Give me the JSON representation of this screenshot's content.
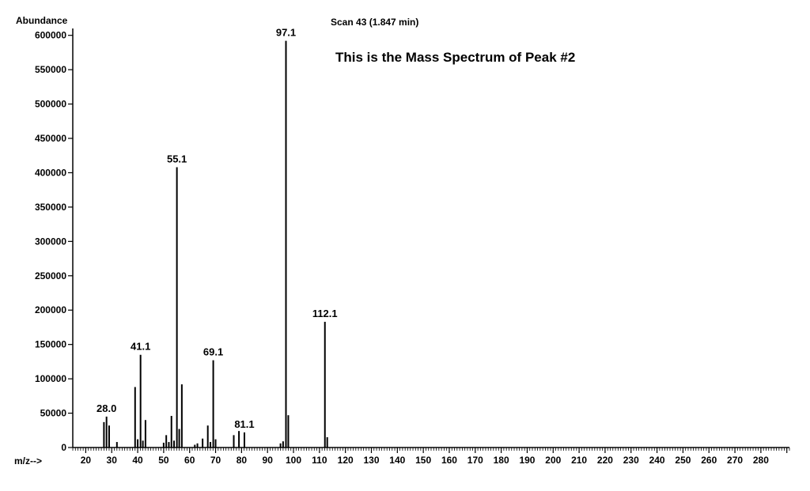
{
  "chart_data": {
    "type": "bar",
    "title": "Scan 43 (1.847 min)",
    "subtitle": "This is the Mass Spectrum of Peak #2",
    "ylabel": "Abundance",
    "xlabel": "m/z-->",
    "xlim": [
      15,
      291
    ],
    "ylim": [
      0,
      610000
    ],
    "grid": false,
    "y_ticks": [
      0,
      50000,
      100000,
      150000,
      200000,
      250000,
      300000,
      350000,
      400000,
      450000,
      500000,
      550000,
      600000
    ],
    "y_tick_labels": [
      "0",
      "50000",
      "100000",
      "150000",
      "200000",
      "250000",
      "300000",
      "350000",
      "400000",
      "450000",
      "500000",
      "550000",
      "600000"
    ],
    "x_ticks": [
      20,
      30,
      40,
      50,
      60,
      70,
      80,
      90,
      100,
      110,
      120,
      130,
      140,
      150,
      160,
      170,
      180,
      190,
      200,
      210,
      220,
      230,
      240,
      250,
      260,
      270,
      280
    ],
    "x_tick_labels": [
      "20",
      "30",
      "40",
      "50",
      "60",
      "70",
      "80",
      "90",
      "100",
      "110",
      "120",
      "130",
      "140",
      "150",
      "160",
      "170",
      "180",
      "190",
      "200",
      "210",
      "220",
      "230",
      "240",
      "250",
      "260",
      "270",
      "280"
    ],
    "peaks": [
      {
        "mz": 27,
        "abundance": 37000
      },
      {
        "mz": 28,
        "abundance": 45000
      },
      {
        "mz": 29,
        "abundance": 32000
      },
      {
        "mz": 32,
        "abundance": 8000
      },
      {
        "mz": 39,
        "abundance": 88000
      },
      {
        "mz": 40,
        "abundance": 12000
      },
      {
        "mz": 41.1,
        "abundance": 135000
      },
      {
        "mz": 42,
        "abundance": 10000
      },
      {
        "mz": 43,
        "abundance": 40000
      },
      {
        "mz": 50,
        "abundance": 7000
      },
      {
        "mz": 51,
        "abundance": 18000
      },
      {
        "mz": 52,
        "abundance": 8000
      },
      {
        "mz": 53,
        "abundance": 46000
      },
      {
        "mz": 54,
        "abundance": 10000
      },
      {
        "mz": 55.1,
        "abundance": 408000
      },
      {
        "mz": 56,
        "abundance": 27000
      },
      {
        "mz": 57,
        "abundance": 92000
      },
      {
        "mz": 62,
        "abundance": 4000
      },
      {
        "mz": 63,
        "abundance": 6000
      },
      {
        "mz": 65,
        "abundance": 13000
      },
      {
        "mz": 67,
        "abundance": 32000
      },
      {
        "mz": 68,
        "abundance": 8000
      },
      {
        "mz": 69.1,
        "abundance": 127000
      },
      {
        "mz": 70,
        "abundance": 12000
      },
      {
        "mz": 77,
        "abundance": 18000
      },
      {
        "mz": 79,
        "abundance": 24000
      },
      {
        "mz": 81.1,
        "abundance": 22000
      },
      {
        "mz": 95,
        "abundance": 6000
      },
      {
        "mz": 96,
        "abundance": 9000
      },
      {
        "mz": 97.1,
        "abundance": 592000
      },
      {
        "mz": 98,
        "abundance": 47000
      },
      {
        "mz": 112.1,
        "abundance": 183000
      },
      {
        "mz": 113,
        "abundance": 15000
      }
    ],
    "peak_labels": [
      {
        "mz": 28.0,
        "abundance": 45000,
        "text": "28.0"
      },
      {
        "mz": 41.1,
        "abundance": 135000,
        "text": "41.1"
      },
      {
        "mz": 55.1,
        "abundance": 408000,
        "text": "55.1"
      },
      {
        "mz": 69.1,
        "abundance": 127000,
        "text": "69.1"
      },
      {
        "mz": 81.1,
        "abundance": 22000,
        "text": "81.1"
      },
      {
        "mz": 97.1,
        "abundance": 592000,
        "text": "97.1"
      },
      {
        "mz": 112.1,
        "abundance": 183000,
        "text": "112.1"
      }
    ]
  }
}
